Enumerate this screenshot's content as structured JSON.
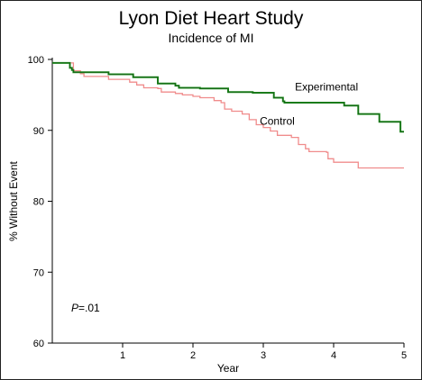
{
  "chart_data": {
    "type": "line",
    "title": "Lyon Diet Heart Study",
    "subtitle": "Incidence of MI",
    "xlabel": "Year",
    "ylabel": "% Without Event",
    "xlim": [
      0,
      5
    ],
    "ylim": [
      60,
      100
    ],
    "x_ticks": [
      1,
      2,
      3,
      4,
      5
    ],
    "y_ticks": [
      60,
      70,
      80,
      90,
      100
    ],
    "grid": false,
    "legend": "none (direct labels)",
    "annotation": {
      "italic": "P",
      "rest": "=.01"
    },
    "series": [
      {
        "name": "Experimental",
        "color": "#1f8f1f",
        "dark_color": "#0d3d0d",
        "step": true,
        "points": [
          [
            0,
            99.5
          ],
          [
            0.25,
            99.5
          ],
          [
            0.25,
            98.8
          ],
          [
            0.28,
            98.5
          ],
          [
            0.3,
            98.2
          ],
          [
            0.8,
            98.2
          ],
          [
            0.8,
            97.9
          ],
          [
            1.15,
            97.9
          ],
          [
            1.15,
            97.5
          ],
          [
            1.45,
            97.5
          ],
          [
            1.5,
            96.6
          ],
          [
            1.7,
            96.6
          ],
          [
            1.75,
            96.3
          ],
          [
            1.8,
            96.0
          ],
          [
            2.05,
            96.0
          ],
          [
            2.1,
            95.9
          ],
          [
            2.4,
            95.9
          ],
          [
            2.5,
            95.4
          ],
          [
            2.8,
            95.4
          ],
          [
            2.85,
            95.3
          ],
          [
            3.1,
            95.3
          ],
          [
            3.15,
            94.6
          ],
          [
            3.28,
            94.1
          ],
          [
            3.3,
            93.9
          ],
          [
            3.8,
            93.9
          ],
          [
            4.1,
            93.9
          ],
          [
            4.15,
            93.5
          ],
          [
            4.3,
            93.5
          ],
          [
            4.35,
            92.3
          ],
          [
            4.6,
            92.3
          ],
          [
            4.65,
            91.2
          ],
          [
            4.9,
            91.2
          ],
          [
            4.95,
            89.8
          ],
          [
            5.0,
            89.8
          ]
        ]
      },
      {
        "name": "Control",
        "color": "#f08c8c",
        "step": true,
        "points": [
          [
            0,
            99.5
          ],
          [
            0.25,
            99.5
          ],
          [
            0.3,
            98.4
          ],
          [
            0.4,
            98.0
          ],
          [
            0.45,
            97.6
          ],
          [
            0.75,
            97.6
          ],
          [
            0.8,
            97.2
          ],
          [
            1.05,
            97.2
          ],
          [
            1.1,
            96.8
          ],
          [
            1.2,
            96.4
          ],
          [
            1.3,
            96.0
          ],
          [
            1.5,
            95.9
          ],
          [
            1.55,
            95.4
          ],
          [
            1.75,
            95.2
          ],
          [
            1.85,
            95.0
          ],
          [
            2.0,
            94.8
          ],
          [
            2.1,
            94.6
          ],
          [
            2.3,
            94.2
          ],
          [
            2.4,
            93.9
          ],
          [
            2.45,
            93.0
          ],
          [
            2.55,
            92.7
          ],
          [
            2.7,
            92.3
          ],
          [
            2.8,
            91.5
          ],
          [
            2.9,
            90.8
          ],
          [
            3.0,
            90.4
          ],
          [
            3.1,
            89.9
          ],
          [
            3.2,
            89.3
          ],
          [
            3.4,
            89.0
          ],
          [
            3.5,
            88.0
          ],
          [
            3.6,
            87.4
          ],
          [
            3.65,
            87.0
          ],
          [
            3.9,
            86.9
          ],
          [
            3.92,
            86.0
          ],
          [
            4.0,
            85.5
          ],
          [
            4.3,
            85.5
          ],
          [
            4.35,
            84.7
          ],
          [
            5.0,
            84.7
          ]
        ]
      }
    ],
    "series_labels": [
      {
        "text": "Experimental",
        "x": 3.45,
        "y": 95.6
      },
      {
        "text": "Control",
        "x": 2.95,
        "y": 90.8
      }
    ]
  }
}
